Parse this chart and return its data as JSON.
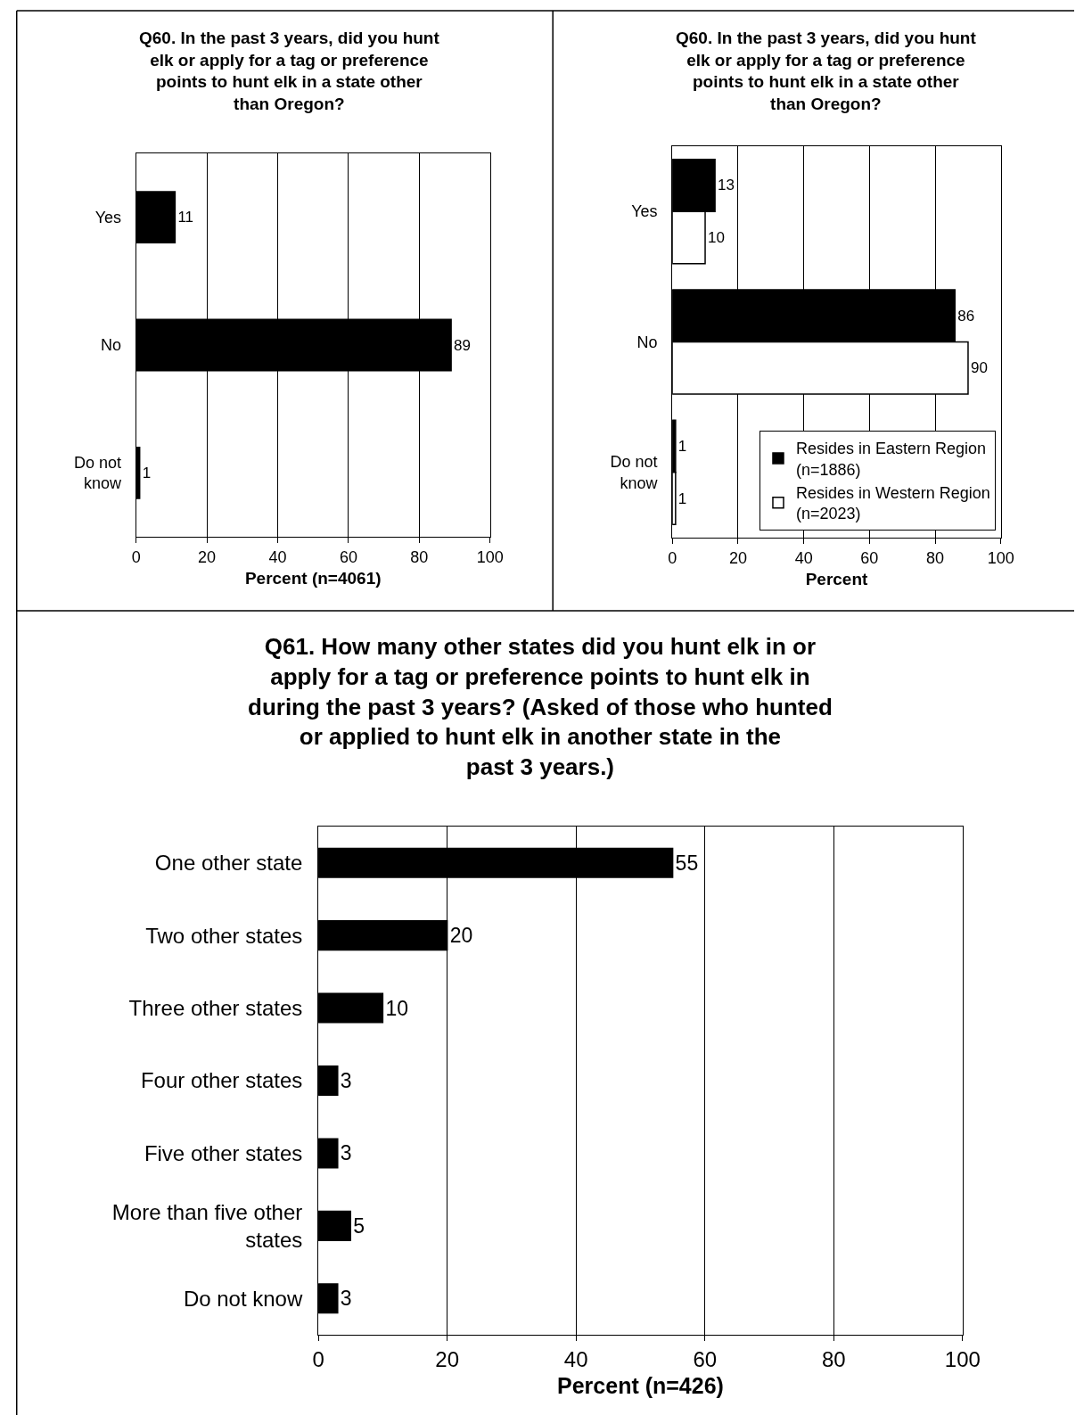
{
  "chart_data": [
    {
      "type": "bar",
      "orientation": "horizontal",
      "title": "Q60. In the past 3 years, did you hunt\nelk or apply for a tag or preference\npoints to hunt elk in a state other\nthan Oregon?",
      "xlabel": "Percent (n=4061)",
      "categories": [
        "Yes",
        "No",
        "Do not\nknow"
      ],
      "series": [
        {
          "color": "#000000",
          "values": [
            11,
            89,
            1
          ]
        }
      ],
      "xlim": [
        0,
        100
      ],
      "xticks": [
        0,
        20,
        40,
        60,
        80,
        100
      ],
      "grid": "x",
      "data_labels": true,
      "legend": false
    },
    {
      "type": "bar",
      "orientation": "horizontal",
      "title": "Q60. In the past 3 years, did you hunt\nelk or apply for a tag or preference\npoints to hunt elk in a state other\nthan Oregon?",
      "xlabel": "Percent",
      "categories": [
        "Yes",
        "No",
        "Do not\nknow"
      ],
      "series": [
        {
          "name": "Resides in Eastern Region\n(n=1886)",
          "color": "#000000",
          "values": [
            13,
            86,
            1
          ]
        },
        {
          "name": "Resides in Western Region\n(n=2023)",
          "color": "#ffffff",
          "values": [
            10,
            90,
            1
          ]
        }
      ],
      "xlim": [
        0,
        100
      ],
      "xticks": [
        0,
        20,
        40,
        60,
        80,
        100
      ],
      "grid": "x",
      "data_labels": true,
      "legend": "bottom right"
    },
    {
      "type": "bar",
      "orientation": "horizontal",
      "title": "Q61. How many other states did you hunt elk in or\napply for a tag or preference points to hunt elk in\nduring the past 3 years? (Asked of those who hunted\nor applied to hunt elk in another state in the\npast 3 years.)",
      "xlabel": "Percent (n=426)",
      "categories": [
        "One other state",
        "Two other states",
        "Three other states",
        "Four other states",
        "Five other states",
        "More than five other\nstates",
        "Do not know"
      ],
      "series": [
        {
          "color": "#000000",
          "values": [
            55,
            20,
            10,
            3,
            3,
            5,
            3
          ]
        }
      ],
      "xlim": [
        0,
        100
      ],
      "xticks": [
        0,
        20,
        40,
        60,
        80,
        100
      ],
      "grid": "x",
      "data_labels": true,
      "legend": false
    }
  ]
}
